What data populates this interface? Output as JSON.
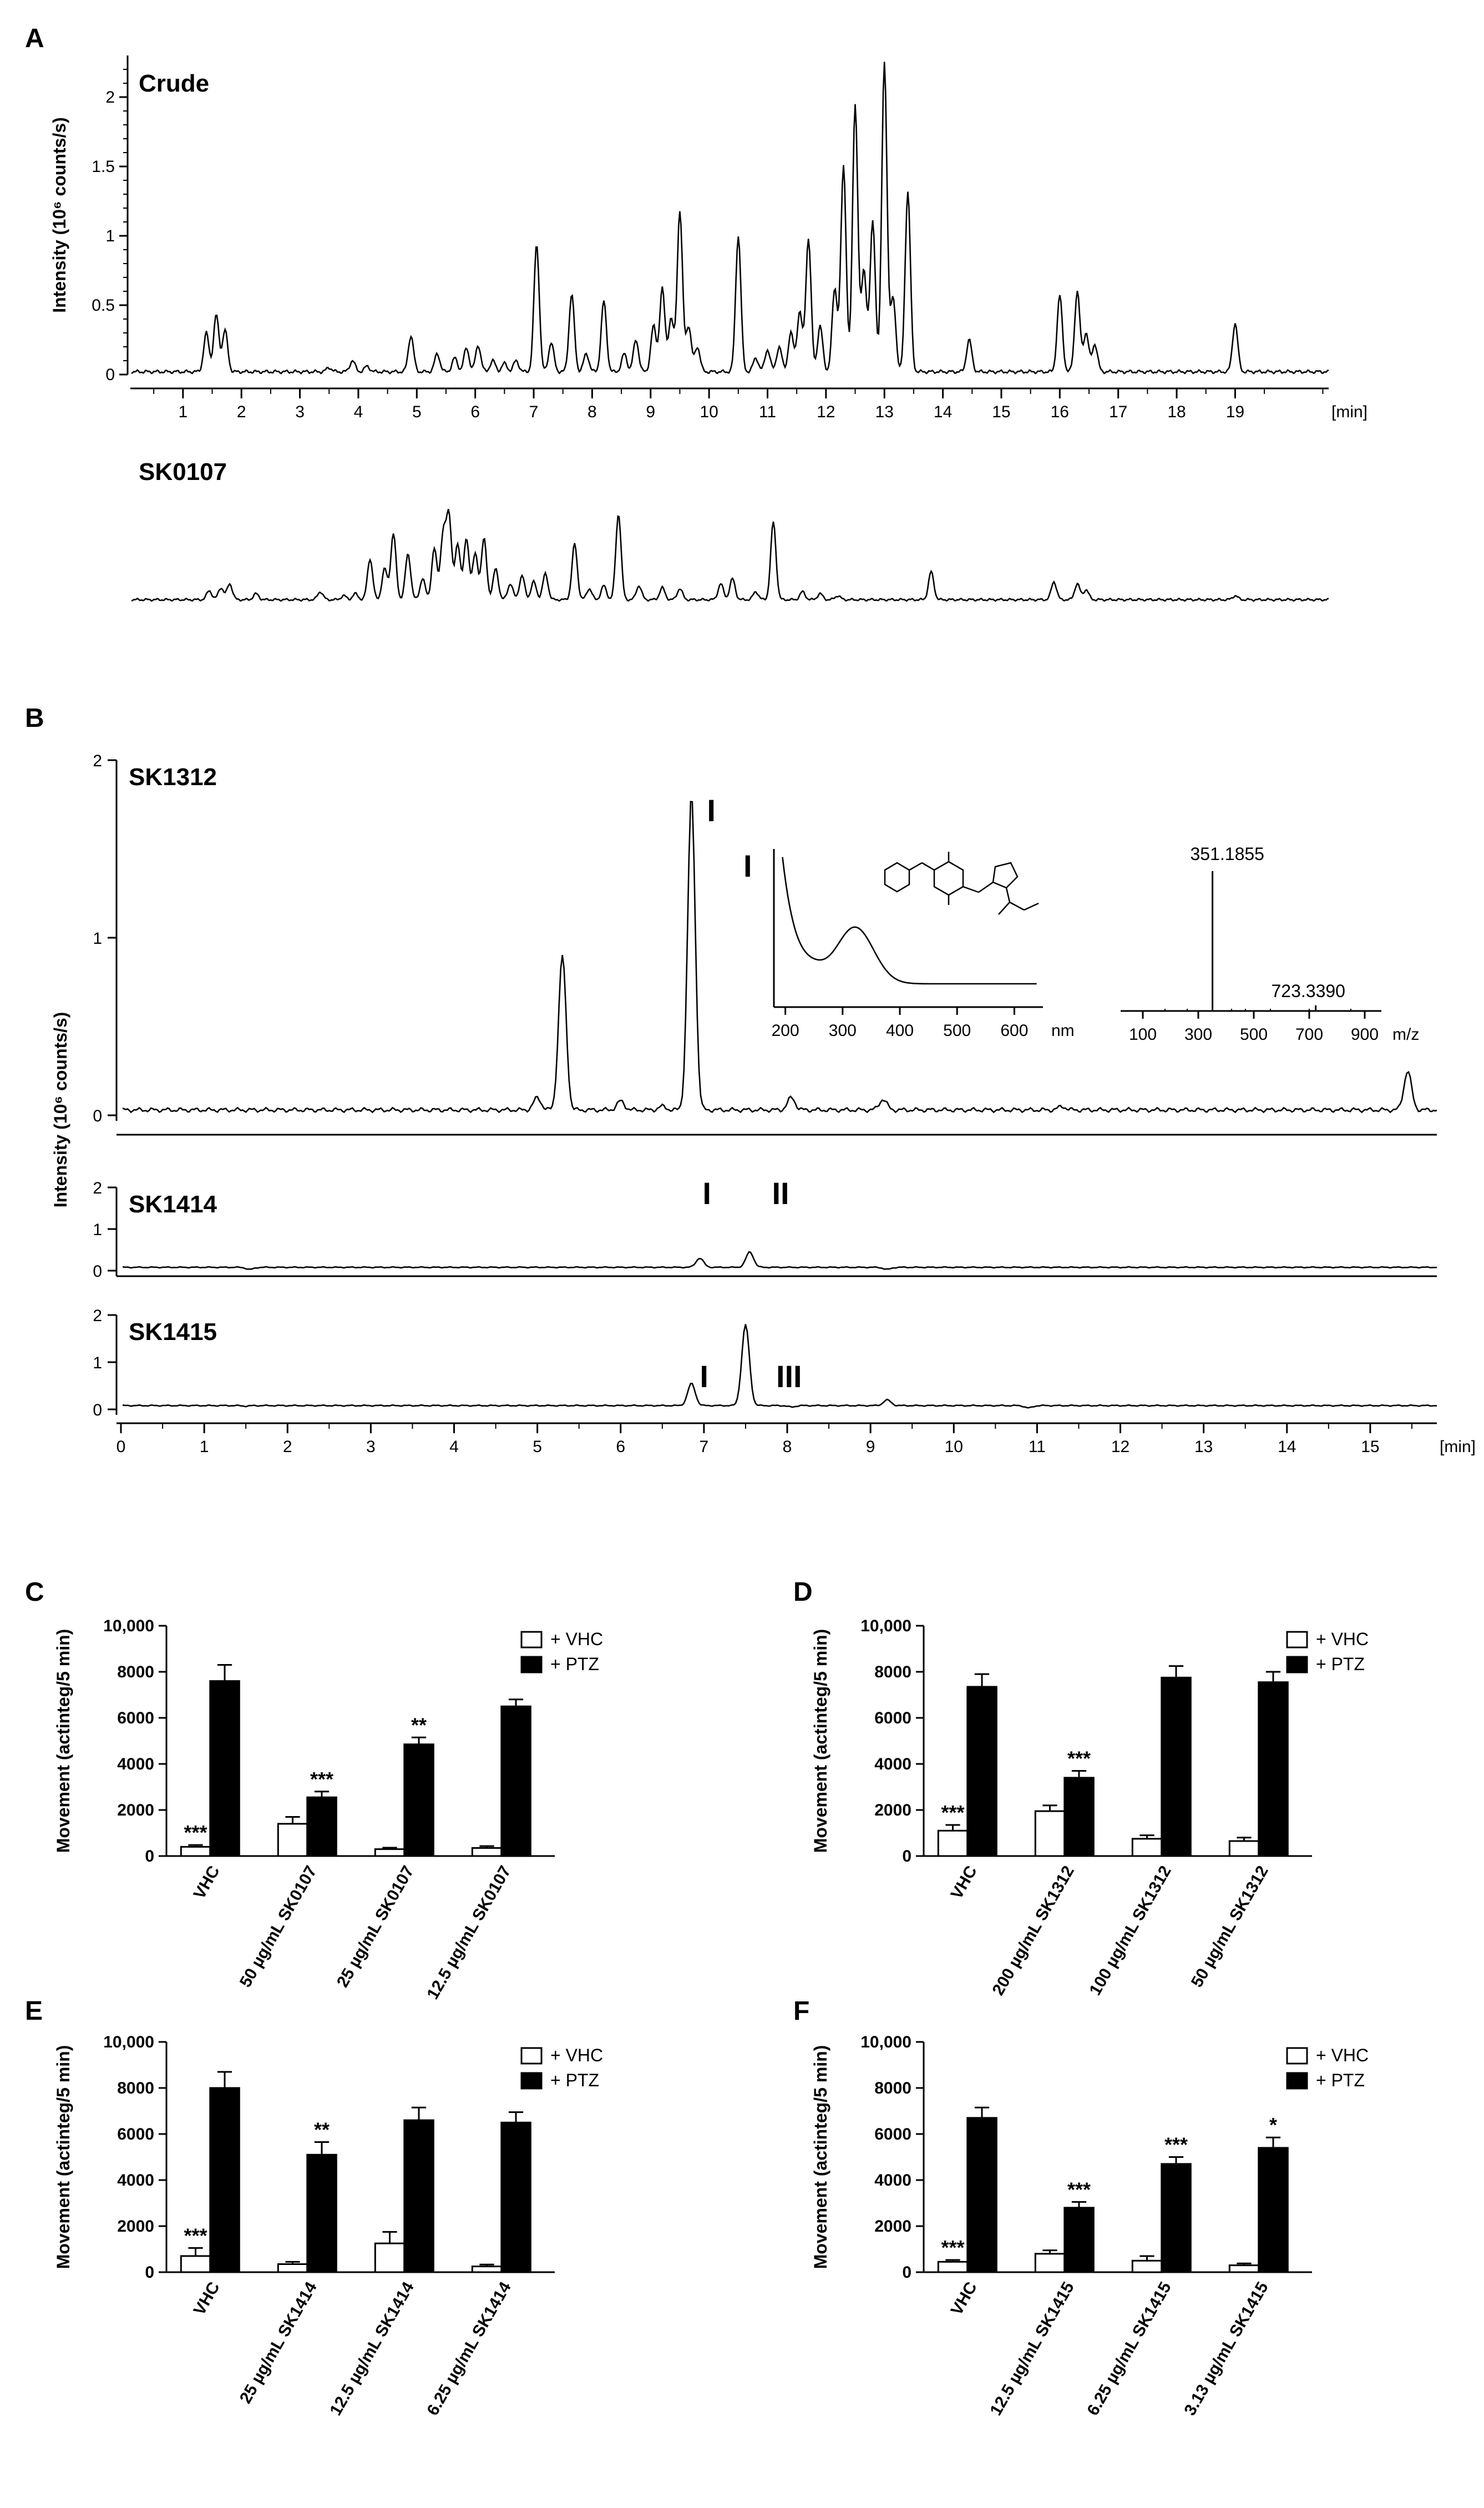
{
  "chart_data": [
    {
      "panel": "A",
      "type": "line",
      "ylabel": "Intensity (10⁶ counts/s)",
      "xunit": "[min]",
      "xticks": [
        1,
        2,
        3,
        4,
        5,
        6,
        7,
        8,
        9,
        10,
        11,
        12,
        13,
        14,
        15,
        16,
        17,
        18,
        19
      ],
      "yticks": [
        "0",
        "0.5",
        "1",
        "1.5",
        "2"
      ],
      "ylim": [
        0,
        2.3
      ],
      "xlim": [
        0.1,
        20.6
      ],
      "traces": [
        {
          "name": "Crude",
          "baseline": 0.02,
          "peaks": [
            {
              "x": 1.4,
              "y": 0.3
            },
            {
              "x": 1.57,
              "y": 0.43
            },
            {
              "x": 1.72,
              "y": 0.32
            },
            {
              "x": 3.5,
              "y": 0.05
            },
            {
              "x": 3.9,
              "y": 0.1
            },
            {
              "x": 4.15,
              "y": 0.06
            },
            {
              "x": 4.9,
              "y": 0.28
            },
            {
              "x": 5.35,
              "y": 0.15
            },
            {
              "x": 5.65,
              "y": 0.12
            },
            {
              "x": 5.85,
              "y": 0.19
            },
            {
              "x": 6.05,
              "y": 0.21
            },
            {
              "x": 6.3,
              "y": 0.1
            },
            {
              "x": 6.5,
              "y": 0.08
            },
            {
              "x": 6.7,
              "y": 0.1
            },
            {
              "x": 7.05,
              "y": 0.94
            },
            {
              "x": 7.3,
              "y": 0.23
            },
            {
              "x": 7.65,
              "y": 0.58
            },
            {
              "x": 7.9,
              "y": 0.15
            },
            {
              "x": 8.2,
              "y": 0.53
            },
            {
              "x": 8.55,
              "y": 0.15
            },
            {
              "x": 8.75,
              "y": 0.25
            },
            {
              "x": 9.05,
              "y": 0.35
            },
            {
              "x": 9.2,
              "y": 0.62
            },
            {
              "x": 9.35,
              "y": 0.4
            },
            {
              "x": 9.5,
              "y": 1.18
            },
            {
              "x": 9.65,
              "y": 0.35
            },
            {
              "x": 9.8,
              "y": 0.2
            },
            {
              "x": 10.5,
              "y": 1.0
            },
            {
              "x": 10.8,
              "y": 0.12
            },
            {
              "x": 11.0,
              "y": 0.18
            },
            {
              "x": 11.2,
              "y": 0.2
            },
            {
              "x": 11.4,
              "y": 0.3
            },
            {
              "x": 11.55,
              "y": 0.45
            },
            {
              "x": 11.7,
              "y": 0.98
            },
            {
              "x": 11.9,
              "y": 0.35
            },
            {
              "x": 12.15,
              "y": 0.62
            },
            {
              "x": 12.3,
              "y": 1.5
            },
            {
              "x": 12.5,
              "y": 1.95
            },
            {
              "x": 12.65,
              "y": 0.75
            },
            {
              "x": 12.8,
              "y": 1.1
            },
            {
              "x": 13.0,
              "y": 2.25
            },
            {
              "x": 13.15,
              "y": 0.55
            },
            {
              "x": 13.4,
              "y": 1.32
            },
            {
              "x": 14.45,
              "y": 0.25
            },
            {
              "x": 16.0,
              "y": 0.57
            },
            {
              "x": 16.3,
              "y": 0.6
            },
            {
              "x": 16.45,
              "y": 0.3
            },
            {
              "x": 16.6,
              "y": 0.22
            },
            {
              "x": 19.0,
              "y": 0.37
            }
          ]
        },
        {
          "name": "SK0107",
          "baseline": 0.04,
          "peaks": [
            {
              "x": 1.45,
              "y": 0.13
            },
            {
              "x": 1.65,
              "y": 0.16
            },
            {
              "x": 1.8,
              "y": 0.2
            },
            {
              "x": 2.25,
              "y": 0.1
            },
            {
              "x": 3.35,
              "y": 0.12
            },
            {
              "x": 3.75,
              "y": 0.08
            },
            {
              "x": 3.95,
              "y": 0.1
            },
            {
              "x": 4.2,
              "y": 0.45
            },
            {
              "x": 4.45,
              "y": 0.35
            },
            {
              "x": 4.6,
              "y": 0.7
            },
            {
              "x": 4.85,
              "y": 0.5
            },
            {
              "x": 5.1,
              "y": 0.25
            },
            {
              "x": 5.3,
              "y": 0.55
            },
            {
              "x": 5.45,
              "y": 0.68
            },
            {
              "x": 5.55,
              "y": 0.88
            },
            {
              "x": 5.7,
              "y": 0.6
            },
            {
              "x": 5.85,
              "y": 0.65
            },
            {
              "x": 6.0,
              "y": 0.5
            },
            {
              "x": 6.15,
              "y": 0.65
            },
            {
              "x": 6.35,
              "y": 0.35
            },
            {
              "x": 6.6,
              "y": 0.2
            },
            {
              "x": 6.8,
              "y": 0.28
            },
            {
              "x": 7.0,
              "y": 0.22
            },
            {
              "x": 7.2,
              "y": 0.3
            },
            {
              "x": 7.7,
              "y": 0.6
            },
            {
              "x": 7.95,
              "y": 0.15
            },
            {
              "x": 8.2,
              "y": 0.18
            },
            {
              "x": 8.45,
              "y": 0.9
            },
            {
              "x": 8.8,
              "y": 0.18
            },
            {
              "x": 9.2,
              "y": 0.16
            },
            {
              "x": 9.5,
              "y": 0.15
            },
            {
              "x": 10.2,
              "y": 0.2
            },
            {
              "x": 10.4,
              "y": 0.25
            },
            {
              "x": 10.8,
              "y": 0.12
            },
            {
              "x": 11.1,
              "y": 0.82
            },
            {
              "x": 11.6,
              "y": 0.12
            },
            {
              "x": 11.9,
              "y": 0.1
            },
            {
              "x": 12.2,
              "y": 0.08
            },
            {
              "x": 13.8,
              "y": 0.32
            },
            {
              "x": 15.9,
              "y": 0.22
            },
            {
              "x": 16.3,
              "y": 0.2
            },
            {
              "x": 16.45,
              "y": 0.14
            },
            {
              "x": 19.0,
              "y": 0.08
            }
          ]
        }
      ]
    },
    {
      "panel": "B",
      "type": "line",
      "ylabel": "Intensity (10⁶ counts/s)",
      "xunit": "[min]",
      "xticks": [
        0,
        1,
        2,
        3,
        4,
        5,
        6,
        7,
        8,
        9,
        10,
        11,
        12,
        13,
        14,
        15
      ],
      "xlim": [
        0,
        15.8
      ],
      "traces": [
        {
          "name": "SK1312",
          "ylim": [
            0,
            2
          ],
          "yticks": [
            "0",
            "1",
            "2"
          ],
          "baseline": 0.03,
          "peaks": [
            {
              "x": 5.0,
              "y": 0.1
            },
            {
              "x": 5.3,
              "y": 0.9
            },
            {
              "x": 6.0,
              "y": 0.08
            },
            {
              "x": 6.5,
              "y": 0.05
            },
            {
              "x": 6.85,
              "y": 1.8
            },
            {
              "x": 8.05,
              "y": 0.1
            },
            {
              "x": 9.15,
              "y": 0.09
            },
            {
              "x": 11.3,
              "y": 0.05
            },
            {
              "x": 15.45,
              "y": 0.25
            }
          ],
          "peak_labels": [
            {
              "x": 6.85,
              "text": "I"
            }
          ]
        },
        {
          "name": "SK1414",
          "ylim": [
            0,
            2
          ],
          "yticks": [
            "0",
            "1",
            "2"
          ],
          "baseline": 0.08,
          "peaks": [
            {
              "x": 1.55,
              "y": 0.03
            },
            {
              "x": 6.95,
              "y": 0.3
            },
            {
              "x": 7.55,
              "y": 0.45
            },
            {
              "x": 9.2,
              "y": 0.03
            }
          ],
          "peak_labels": [
            {
              "x": 6.95,
              "text": "I"
            },
            {
              "x": 7.55,
              "text": "II"
            }
          ]
        },
        {
          "name": "SK1415",
          "ylim": [
            0,
            2
          ],
          "yticks": [
            "0",
            "1",
            "2"
          ],
          "baseline": 0.08,
          "peaks": [
            {
              "x": 1.5,
              "y": 0.07
            },
            {
              "x": 6.85,
              "y": 0.55
            },
            {
              "x": 7.5,
              "y": 1.8
            },
            {
              "x": 8.05,
              "y": 0.05
            },
            {
              "x": 9.2,
              "y": 0.2
            },
            {
              "x": 10.9,
              "y": 0.03
            }
          ],
          "peak_labels": [
            {
              "x": 6.85,
              "text": "I"
            },
            {
              "x": 7.5,
              "text": "III"
            }
          ]
        }
      ],
      "insets": {
        "uv": {
          "label": "I",
          "xunit": "nm",
          "xticks": [
            200,
            300,
            400,
            500,
            600
          ]
        },
        "ms": {
          "xunit": "m/z",
          "xticks": [
            100,
            300,
            500,
            700,
            900
          ],
          "peak_labels": [
            "351.1855",
            "723.3390"
          ],
          "peaks": [
            {
              "mz": 351.1855,
              "rel": 1.0
            },
            {
              "mz": 723.339,
              "rel": 0.04
            }
          ]
        }
      }
    },
    {
      "panel": "C",
      "type": "bar",
      "ylabel": "Movement (actinteg/5 min)",
      "yticks": [
        "0",
        "2000",
        "4000",
        "6000",
        "8000",
        "10,000"
      ],
      "ylim": [
        0,
        10000
      ],
      "categories": [
        "VHC",
        "50 µg/mL SK0107",
        "25 µg/mL SK0107",
        "12.5 µg/mL SK0107"
      ],
      "series": [
        {
          "name": "+ VHC",
          "values": [
            400,
            1400,
            300,
            350
          ],
          "errors": [
            80,
            300,
            60,
            80
          ],
          "sig": [
            "***",
            "",
            "",
            ""
          ]
        },
        {
          "name": "+ PTZ",
          "values": [
            7600,
            2550,
            4850,
            6500
          ],
          "errors": [
            700,
            250,
            300,
            300
          ],
          "sig": [
            "",
            "***",
            "**",
            ""
          ]
        }
      ]
    },
    {
      "panel": "D",
      "type": "bar",
      "ylabel": "Movement (actinteg/5 min)",
      "yticks": [
        "0",
        "2000",
        "4000",
        "6000",
        "8000",
        "10,000"
      ],
      "ylim": [
        0,
        10000
      ],
      "categories": [
        "VHC",
        "200 µg/mL SK1312",
        "100 µg/mL SK1312",
        "50 µg/mL SK1312"
      ],
      "series": [
        {
          "name": "+ VHC",
          "values": [
            1100,
            1950,
            750,
            650
          ],
          "errors": [
            250,
            250,
            150,
            150
          ],
          "sig": [
            "***",
            "",
            "",
            ""
          ]
        },
        {
          "name": "+ PTZ",
          "values": [
            7350,
            3400,
            7750,
            7550
          ],
          "errors": [
            550,
            300,
            500,
            450
          ],
          "sig": [
            "",
            "***",
            "",
            ""
          ]
        }
      ]
    },
    {
      "panel": "E",
      "type": "bar",
      "ylabel": "Movement (actinteg/5 min)",
      "yticks": [
        "0",
        "2000",
        "4000",
        "6000",
        "8000",
        "10,000"
      ],
      "ylim": [
        0,
        10000
      ],
      "categories": [
        "VHC",
        "25 µg/mL SK1414",
        "12.5 µg/mL SK1414",
        "6.25 µg/mL SK1414"
      ],
      "series": [
        {
          "name": "+ VHC",
          "values": [
            700,
            350,
            1250,
            250
          ],
          "errors": [
            350,
            100,
            500,
            80
          ],
          "sig": [
            "***",
            "",
            "",
            ""
          ]
        },
        {
          "name": "+ PTZ",
          "values": [
            8000,
            5100,
            6600,
            6500
          ],
          "errors": [
            700,
            550,
            550,
            450
          ],
          "sig": [
            "",
            "**",
            "",
            ""
          ]
        }
      ]
    },
    {
      "panel": "F",
      "type": "bar",
      "ylabel": "Movement (actinteg/5 min)",
      "yticks": [
        "0",
        "2000",
        "4000",
        "6000",
        "8000",
        "10,000"
      ],
      "ylim": [
        0,
        10000
      ],
      "categories": [
        "VHC",
        "12.5 µg/mL SK1415",
        "6.25 µg/mL SK1415",
        "3.13 µg/mL SK1415"
      ],
      "series": [
        {
          "name": "+ VHC",
          "values": [
            450,
            800,
            500,
            300
          ],
          "errors": [
            80,
            150,
            200,
            80
          ],
          "sig": [
            "***",
            "",
            "",
            ""
          ]
        },
        {
          "name": "+ PTZ",
          "values": [
            6700,
            2800,
            4700,
            5400
          ],
          "errors": [
            450,
            250,
            300,
            450
          ],
          "sig": [
            "",
            "***",
            "***",
            "*"
          ]
        }
      ]
    }
  ]
}
